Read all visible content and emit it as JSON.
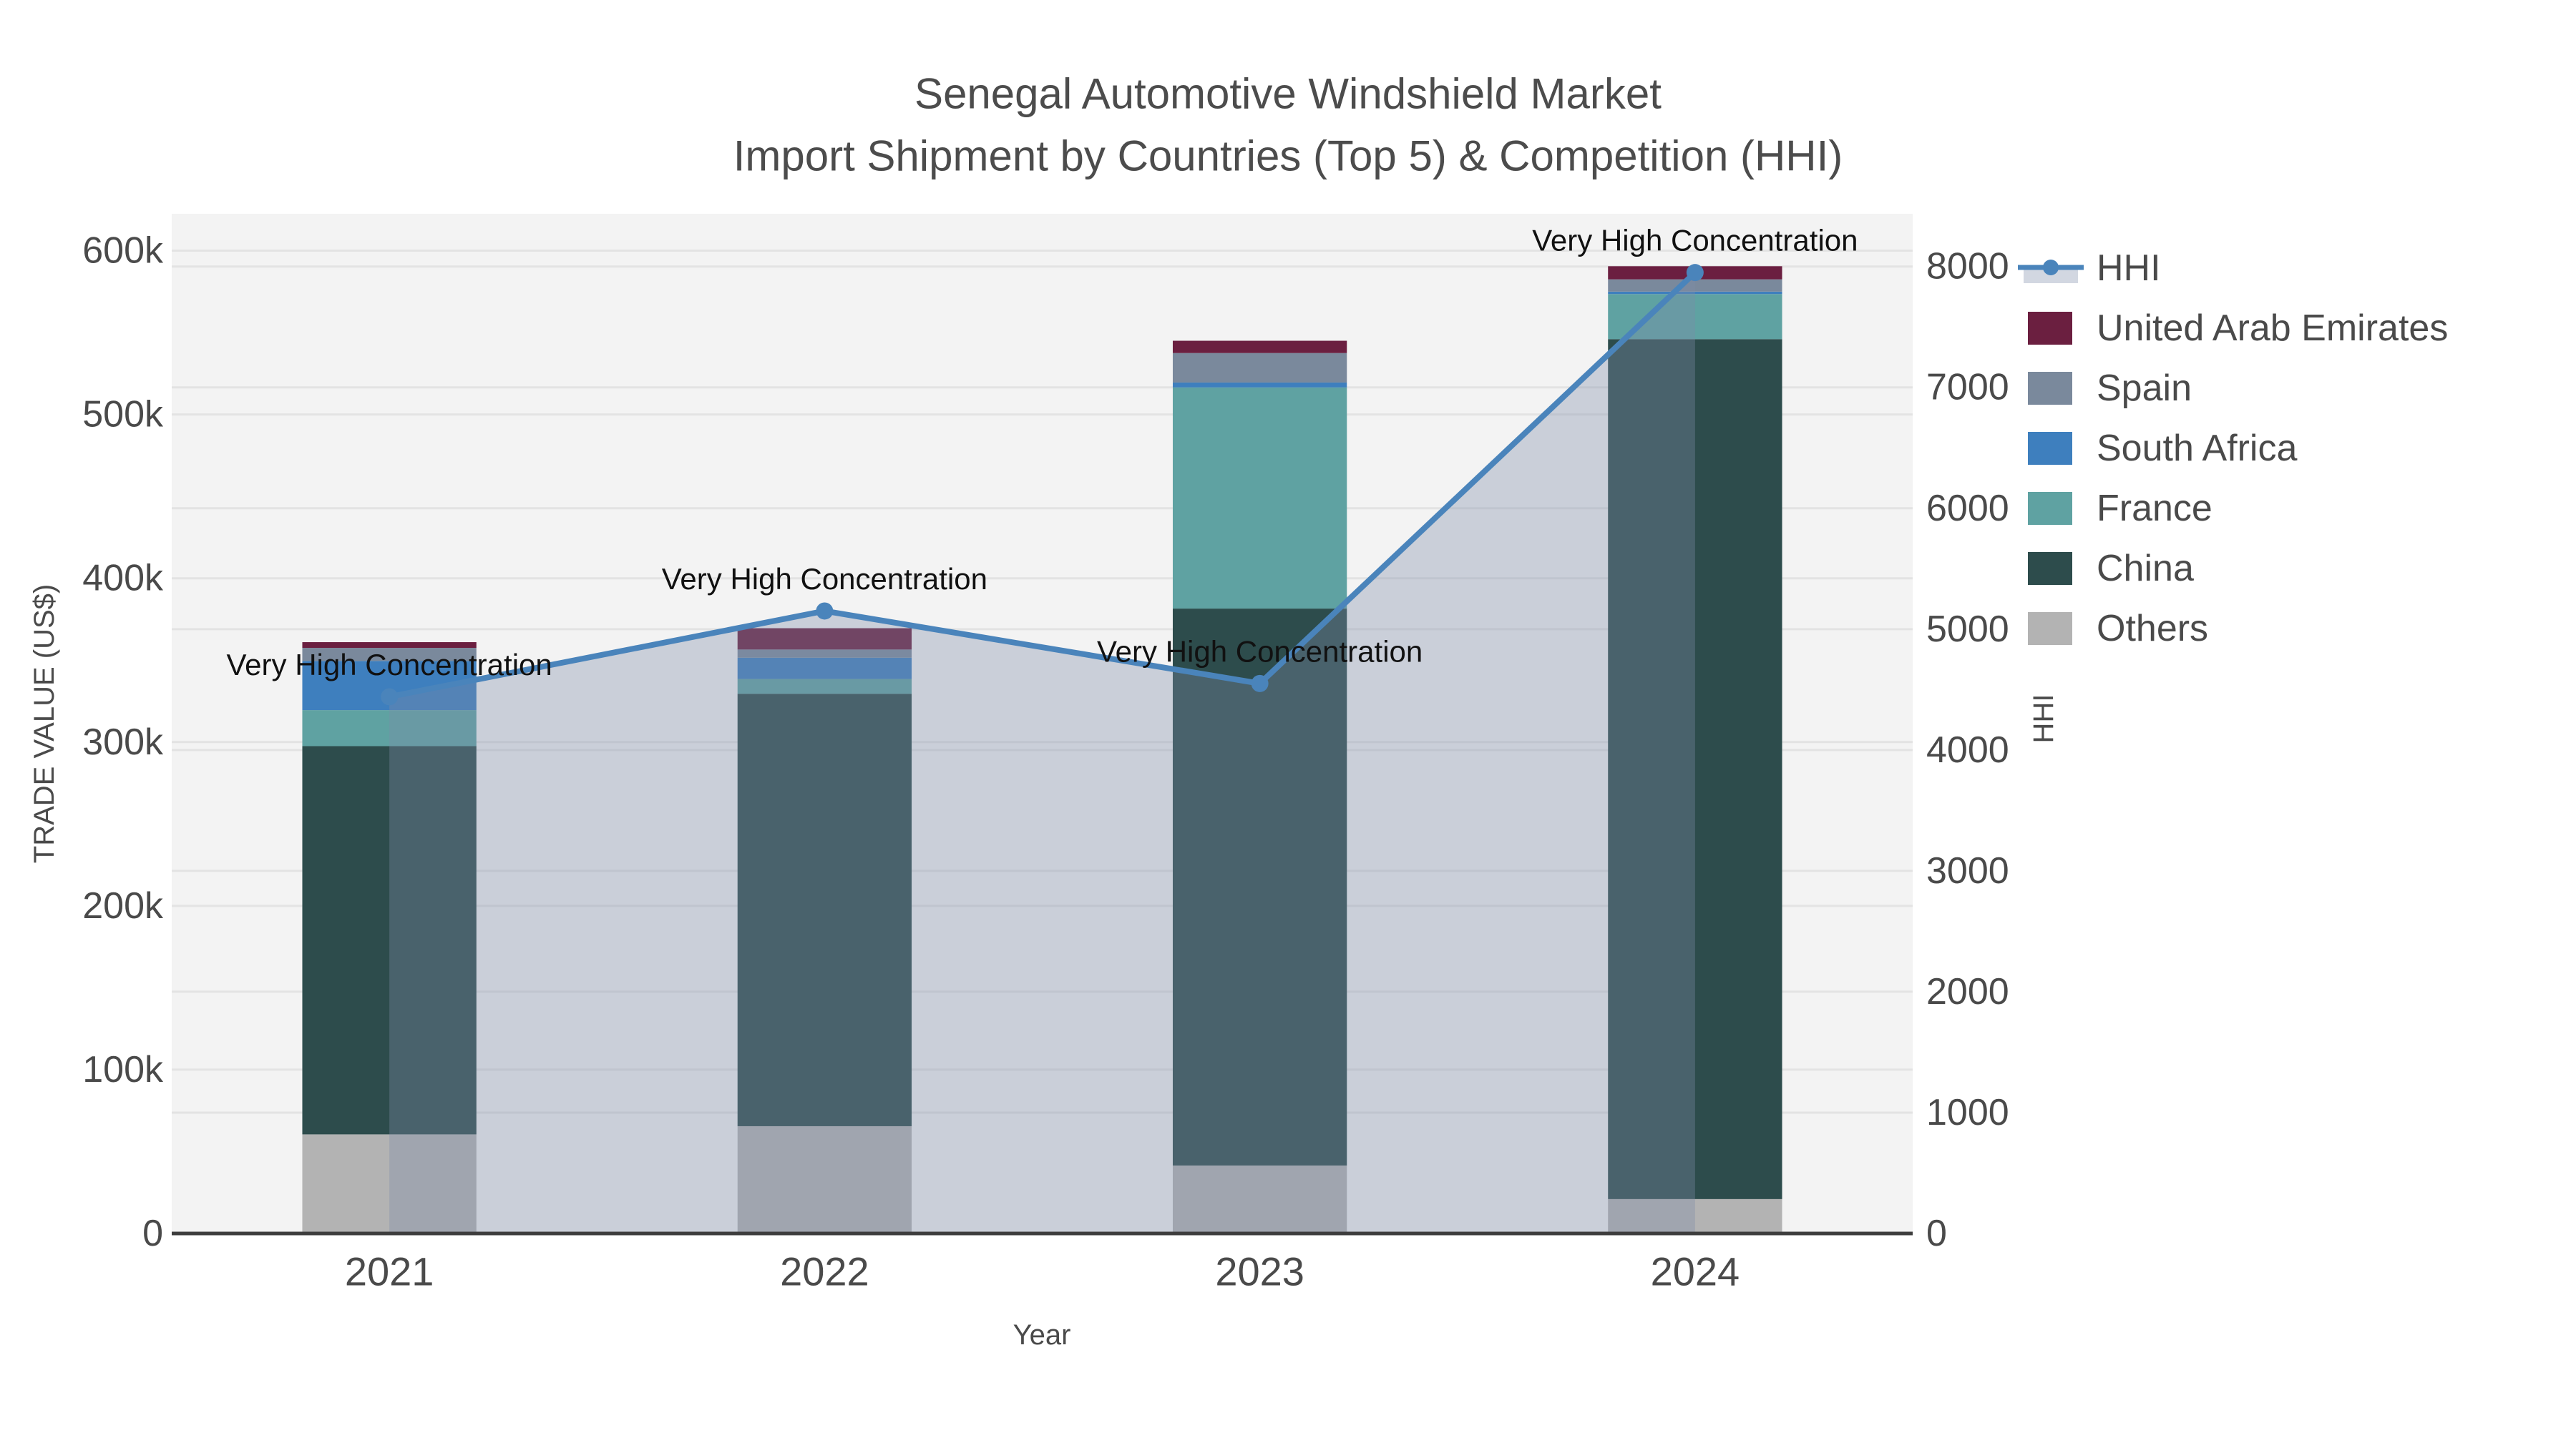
{
  "title": {
    "line1": "Senegal Automotive Windshield Market",
    "line2": "Import Shipment by Countries (Top 5) & Competition (HHI)"
  },
  "chart_data": {
    "type": "bar",
    "subtype": "stacked-bar-with-line-overlay",
    "categories": [
      "2021",
      "2022",
      "2023",
      "2024"
    ],
    "stack_series": [
      {
        "name": "Others",
        "color": "#b3b3b3",
        "values": [
          60500,
          65500,
          41500,
          21000
        ]
      },
      {
        "name": "China",
        "color": "#2d4c4c",
        "values": [
          237000,
          264000,
          340000,
          525000
        ]
      },
      {
        "name": "France",
        "color": "#5fa2a2",
        "values": [
          22000,
          9000,
          135000,
          27500
        ]
      },
      {
        "name": "South Africa",
        "color": "#3e7fbe",
        "values": [
          30000,
          13000,
          3000,
          1500
        ]
      },
      {
        "name": "Spain",
        "color": "#7a899c",
        "values": [
          8000,
          5000,
          18000,
          7500
        ]
      },
      {
        "name": "United Arab Emirates",
        "color": "#6b1f40",
        "values": [
          3500,
          13000,
          7500,
          8000
        ]
      }
    ],
    "bar_totals": [
      361000,
      369500,
      545000,
      590500
    ],
    "line_series": {
      "name": "HHI",
      "color": "#4a84bb",
      "area_fill": "rgba(125,140,170,0.35)",
      "values": [
        4440,
        5150,
        4550,
        7950
      ]
    },
    "annotations": [
      {
        "text": "Very High Concentration",
        "x_index": 0
      },
      {
        "text": "Very High Concentration",
        "x_index": 1
      },
      {
        "text": "Very High Concentration",
        "x_index": 2
      },
      {
        "text": "Very High Concentration",
        "x_index": 3
      }
    ],
    "xlabel": "Year",
    "ylabel_left": "TRADE VALUE (US$)",
    "ylabel_right": "HHI",
    "yticks_left": [
      "0",
      "100k",
      "200k",
      "300k",
      "400k",
      "500k",
      "600k"
    ],
    "yticks_right": [
      "0",
      "1000",
      "2000",
      "3000",
      "4000",
      "5000",
      "6000",
      "7000",
      "8000"
    ],
    "ytick_step_left": 100000,
    "ytick_step_right": 1000,
    "ylim_left": [
      0,
      622500
    ],
    "ylim_right": [
      0,
      8436
    ],
    "grid": true,
    "legend_position": "right",
    "legend_order": [
      "HHI",
      "United Arab Emirates",
      "Spain",
      "South Africa",
      "France",
      "China",
      "Others"
    ]
  },
  "colors": {
    "plot_bg": "#f3f3f3",
    "figure_bg": "#ffffff",
    "gridline": "#e3e3e3",
    "axis_line": "#3d3d3d",
    "tick_text": "#4a4a4a",
    "title_text": "#4c4c4c",
    "annotation_text": "#111111"
  }
}
